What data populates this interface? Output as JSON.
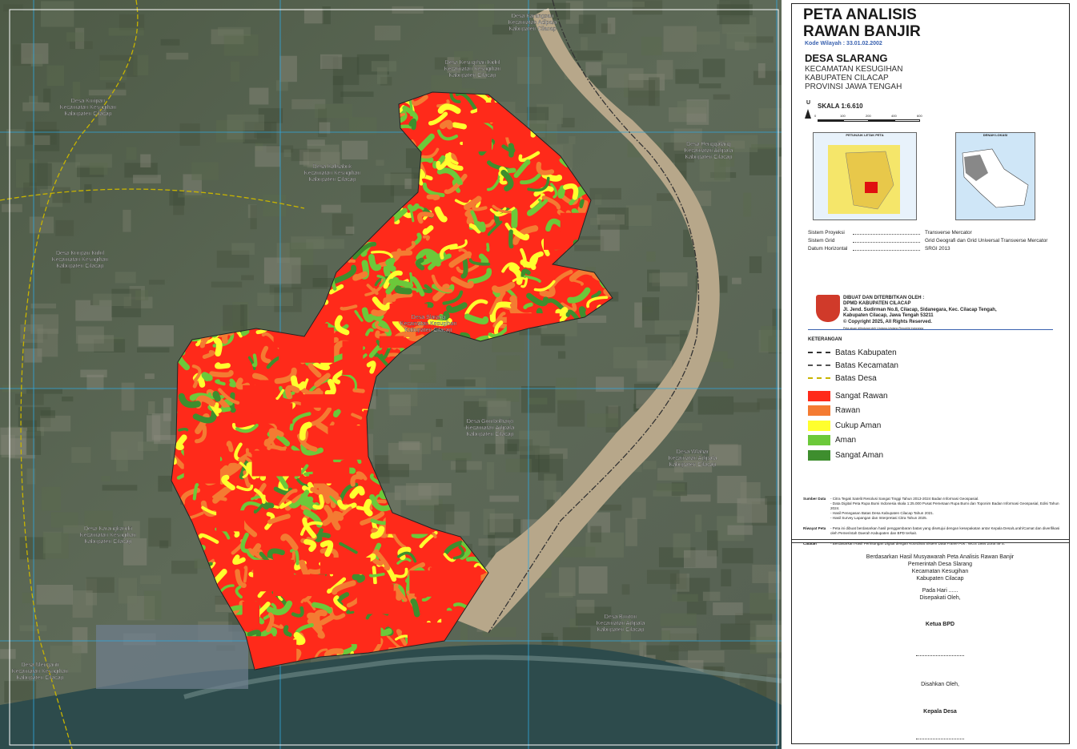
{
  "header": {
    "title_lines": [
      "PETA ANALISIS",
      "RAWAN BANJIR"
    ],
    "code": "Kode Wilayah : 33.01.02.2002"
  },
  "location": {
    "village": "DESA SLARANG",
    "lines": [
      "KECAMATAN KESUGIHAN",
      "KABUPATEN CILACAP",
      "PROVINSI JAWA TENGAH"
    ]
  },
  "scale": {
    "north": "U",
    "label": "SKALA 1:6.610",
    "ticks": [
      "0",
      "100",
      "200",
      "400",
      "600"
    ]
  },
  "insets": [
    "PETUNJUK LETAK PETA",
    "DENAH LOKASI"
  ],
  "projection": [
    {
      "label": "Sistem Proyeksi",
      "value": "Transverse Mercator"
    },
    {
      "label": "Sistem Grid",
      "value": "Grid Geografi dan Grid Universal Transverse Mercator"
    },
    {
      "label": "Datum Horizontal",
      "value": "SRGI 2013"
    }
  ],
  "publisher": {
    "lines": [
      "DIBUAT DAN DITERBITKAN OLEH :",
      "DPMD KABUPATEN CILACAP",
      "Jl. Jend. Sudirman No.8, Cilacap, Sidanegara, Kec. Cilacap Tengah,",
      "Kabupaten Cilacap, Jawa Tengah 53211",
      "© Copyright 2025, All Rights Reserved."
    ],
    "notice": "Peta ajuan dilindungi oleh Undang-Undang Republik Indonesia"
  },
  "legend": {
    "title": "KETERANGAN",
    "lines": [
      {
        "name": "Batas Kabupaten",
        "color": "#333333"
      },
      {
        "name": "Batas Kecamatan",
        "color": "#555555"
      },
      {
        "name": "Batas Desa",
        "color": "#c8b400"
      }
    ],
    "classes": [
      {
        "name": "Sangat Rawan",
        "color": "#ff2a1a"
      },
      {
        "name": "Rawan",
        "color": "#f47b32"
      },
      {
        "name": "Cukup Aman",
        "color": "#ffff2e"
      },
      {
        "name": "Aman",
        "color": "#6cc93a"
      },
      {
        "name": "Sangat Aman",
        "color": "#3e8e2e"
      }
    ]
  },
  "notes": [
    {
      "label": "Sumber Data",
      "items": [
        "- Citra Tegak Satelit Resolusi Sangat Tinggi Tahun 2013-2024 Badan Informasi Geospasial.",
        "- Data Digital Peta Rupa Bumi Indonesia skala 1:25.000 Pusat Pemetaan Rupa Bumi dan Toponim Badan Informasi Geospasial, Edisi Tahun 2024.",
        "- Hasil Penegasan Batas Desa Kabupaten Cilacap Tahun 2021.",
        "- Hasil Survey Lapangan dan Interpretasi Citra Tahun 2025."
      ]
    },
    {
      "label": "Riwayat Peta",
      "items": [
        "- Peta ini dibuat berdasarkan hasil penggambaran batas yang disetujui dengan kesepakatan antar Kepala Desa/Lurah/Camat dan diverifikasi oleh Pemerintah Daerah Kabupaten dan BPD terkait."
      ]
    },
    {
      "label": "Catatan",
      "items": [
        "- Berdasarkan Hasil Perhitungan Digital dengan Koordinat Sistem Data Frame Pos : WGS 1984 Zona 49 S."
      ]
    }
  ],
  "approval": {
    "lines": [
      "Berdasarkan Hasil Musyawarah Peta Analisis Rawan Banjir",
      "Pemerintah Desa Slarang",
      "Kecamatan Kesugihan",
      "Kabupaten Cilacap"
    ],
    "day": "Pada Hari ......",
    "agreed": "Disepakati Oleh,",
    "bpd": "Ketua BPD",
    "ratified": "Disahkan Oleh,",
    "head": "Kepala Desa"
  },
  "map_labels": [
    {
      "lines": [
        "Desa Karangsari",
        "Kecamatan Adipala",
        "Kabupaten Cilacap"
      ]
    },
    {
      "lines": [
        "Desa Kesugihan Kidul",
        "Kecamatan Kesugihan",
        "Kabupaten Cilacap"
      ]
    },
    {
      "lines": [
        "Desa Kuripan",
        "Kecamatan Kesugihan",
        "Kabupaten Cilacap"
      ]
    },
    {
      "lines": [
        "Desa Kalisabuk",
        "Kecamatan Kesugihan",
        "Kabupaten Cilacap"
      ]
    },
    {
      "lines": [
        "Desa Penggalang",
        "Kecamatan Adipala",
        "Kabupaten Cilacap"
      ]
    },
    {
      "lines": [
        "Desa Kuripan Kidul",
        "Kecamatan Kesugihan",
        "Kabupaten Cilacap"
      ]
    },
    {
      "lines": [
        "Desa Slarang",
        "Kecamatan Kesugihan",
        "Kabupaten Cilacap"
      ]
    },
    {
      "lines": [
        "Desa Gombolharjo",
        "Kecamatan Adipala",
        "Kabupaten Cilacap"
      ]
    },
    {
      "lines": [
        "Desa Wlahar",
        "Kecamatan Adipala",
        "Kabupaten Cilacap"
      ]
    },
    {
      "lines": [
        "Desa Karangkandri",
        "Kecamatan Kesugihan",
        "Kabupaten Cilacap"
      ]
    },
    {
      "lines": [
        "Desa Bunton",
        "Kecamatan Adipala",
        "Kabupaten Cilacap"
      ]
    },
    {
      "lines": [
        "Desa Menganti",
        "Kecamatan Kesugihan",
        "Kabupaten Cilacap"
      ]
    }
  ]
}
